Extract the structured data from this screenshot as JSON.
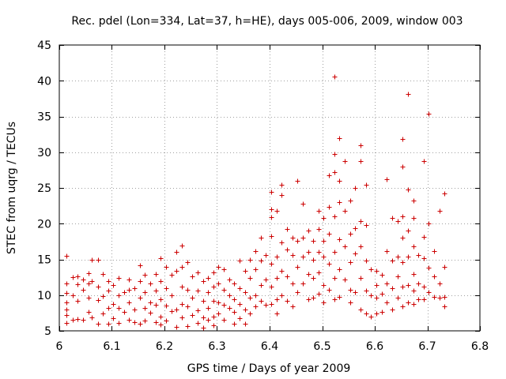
{
  "chart_data": {
    "type": "scatter",
    "title": "Rec. pdel (Lon=334, Lat=37, h=HE), days 005-006, 2009, window 003",
    "xlabel": "GPS time / Days of year 2009",
    "ylabel": "STEC from uqrg / TECUs",
    "xlim": [
      6,
      6.8
    ],
    "ylim": [
      5,
      45
    ],
    "xticks": [
      6,
      6.1,
      6.2,
      6.3,
      6.4,
      6.5,
      6.6,
      6.7,
      6.8
    ],
    "xtick_labels": [
      "6",
      "6.1",
      "6.2",
      "6.3",
      "6.4",
      "6.5",
      "6.6",
      "6.7",
      "6.8"
    ],
    "yticks": [
      5,
      10,
      15,
      20,
      25,
      30,
      35,
      40,
      45
    ],
    "ytick_labels": [
      "5",
      "10",
      "15",
      "20",
      "25",
      "30",
      "35",
      "40",
      "45"
    ],
    "grid": true,
    "marker": "+",
    "marker_color": "#cc0000",
    "series": [
      {
        "name": "STEC",
        "points": [
          [
            6.013,
            15.5
          ],
          [
            6.013,
            11.6
          ],
          [
            6.013,
            10.3
          ],
          [
            6.013,
            9.0
          ],
          [
            6.013,
            8.0
          ],
          [
            6.013,
            7.2
          ],
          [
            6.013,
            6.1
          ],
          [
            6.025,
            12.5
          ],
          [
            6.025,
            10.0
          ],
          [
            6.025,
            6.6
          ],
          [
            6.035,
            12.6
          ],
          [
            6.035,
            11.5
          ],
          [
            6.035,
            9.2
          ],
          [
            6.035,
            6.7
          ],
          [
            6.045,
            12.2
          ],
          [
            6.045,
            10.8
          ],
          [
            6.045,
            6.6
          ],
          [
            6.055,
            13.1
          ],
          [
            6.055,
            11.6
          ],
          [
            6.055,
            9.6
          ],
          [
            6.055,
            7.6
          ],
          [
            6.062,
            15.0
          ],
          [
            6.062,
            12.0
          ],
          [
            6.062,
            6.9
          ],
          [
            6.073,
            15.0
          ],
          [
            6.073,
            11.2
          ],
          [
            6.073,
            9.3
          ],
          [
            6.073,
            6.0
          ],
          [
            6.083,
            13.0
          ],
          [
            6.083,
            9.9
          ],
          [
            6.083,
            7.4
          ],
          [
            6.093,
            12.0
          ],
          [
            6.093,
            10.6
          ],
          [
            6.093,
            8.2
          ],
          [
            6.093,
            6.0
          ],
          [
            6.103,
            11.4
          ],
          [
            6.103,
            8.8
          ],
          [
            6.103,
            6.8
          ],
          [
            6.113,
            12.4
          ],
          [
            6.113,
            10.0
          ],
          [
            6.113,
            8.2
          ],
          [
            6.113,
            6.1
          ],
          [
            6.123,
            10.4
          ],
          [
            6.123,
            7.7
          ],
          [
            6.133,
            12.2
          ],
          [
            6.133,
            10.8
          ],
          [
            6.133,
            9.0
          ],
          [
            6.133,
            6.5
          ],
          [
            6.143,
            11.0
          ],
          [
            6.143,
            8.0
          ],
          [
            6.143,
            6.2
          ],
          [
            6.153,
            14.2
          ],
          [
            6.153,
            12.0
          ],
          [
            6.153,
            9.6
          ],
          [
            6.153,
            6.0
          ],
          [
            6.163,
            12.8
          ],
          [
            6.163,
            10.4
          ],
          [
            6.163,
            8.2
          ],
          [
            6.163,
            6.4
          ],
          [
            6.173,
            11.6
          ],
          [
            6.173,
            9.0
          ],
          [
            6.173,
            7.5
          ],
          [
            6.183,
            13.0
          ],
          [
            6.183,
            10.6
          ],
          [
            6.183,
            8.6
          ],
          [
            6.183,
            6.2
          ],
          [
            6.193,
            15.2
          ],
          [
            6.193,
            12.0
          ],
          [
            6.193,
            9.4
          ],
          [
            6.193,
            7.0
          ],
          [
            6.193,
            5.9
          ],
          [
            6.203,
            14.0
          ],
          [
            6.203,
            11.0
          ],
          [
            6.203,
            8.5
          ],
          [
            6.203,
            6.4
          ],
          [
            6.213,
            12.8
          ],
          [
            6.213,
            10.0
          ],
          [
            6.213,
            7.8
          ],
          [
            6.223,
            16.0
          ],
          [
            6.223,
            13.4
          ],
          [
            6.223,
            8.0
          ],
          [
            6.223,
            5.6
          ],
          [
            6.233,
            16.9
          ],
          [
            6.233,
            14.0
          ],
          [
            6.233,
            11.2
          ],
          [
            6.233,
            8.8
          ],
          [
            6.233,
            6.9
          ],
          [
            6.243,
            14.6
          ],
          [
            6.243,
            10.8
          ],
          [
            6.243,
            8.4
          ],
          [
            6.243,
            5.7
          ],
          [
            6.253,
            12.6
          ],
          [
            6.253,
            9.6
          ],
          [
            6.253,
            7.2
          ],
          [
            6.263,
            13.2
          ],
          [
            6.263,
            10.6
          ],
          [
            6.263,
            7.9
          ],
          [
            6.263,
            6.1
          ],
          [
            6.273,
            12.0
          ],
          [
            6.273,
            9.2
          ],
          [
            6.273,
            6.9
          ],
          [
            6.273,
            5.4
          ],
          [
            6.283,
            12.4
          ],
          [
            6.283,
            10.4
          ],
          [
            6.283,
            8.2
          ],
          [
            6.283,
            6.6
          ],
          [
            6.293,
            13.2
          ],
          [
            6.293,
            11.2
          ],
          [
            6.293,
            9.2
          ],
          [
            6.293,
            7.0
          ],
          [
            6.293,
            5.8
          ],
          [
            6.303,
            14.0
          ],
          [
            6.303,
            11.6
          ],
          [
            6.303,
            9.0
          ],
          [
            6.303,
            7.4
          ],
          [
            6.313,
            13.6
          ],
          [
            6.313,
            10.8
          ],
          [
            6.313,
            8.6
          ],
          [
            6.313,
            6.6
          ],
          [
            6.323,
            12.2
          ],
          [
            6.323,
            10.0
          ],
          [
            6.323,
            8.2
          ],
          [
            6.333,
            11.6
          ],
          [
            6.333,
            9.4
          ],
          [
            6.333,
            7.6
          ],
          [
            6.333,
            6.0
          ],
          [
            6.343,
            14.8
          ],
          [
            6.343,
            11.0
          ],
          [
            6.343,
            8.8
          ],
          [
            6.343,
            6.8
          ],
          [
            6.353,
            13.4
          ],
          [
            6.353,
            10.4
          ],
          [
            6.353,
            8.0
          ],
          [
            6.353,
            6.0
          ],
          [
            6.363,
            15.0
          ],
          [
            6.363,
            12.4
          ],
          [
            6.363,
            9.6
          ],
          [
            6.363,
            7.4
          ],
          [
            6.373,
            16.2
          ],
          [
            6.373,
            13.6
          ],
          [
            6.373,
            10.0
          ],
          [
            6.373,
            8.4
          ],
          [
            6.383,
            18.0
          ],
          [
            6.383,
            14.8
          ],
          [
            6.383,
            11.4
          ],
          [
            6.383,
            9.2
          ],
          [
            6.393,
            15.6
          ],
          [
            6.393,
            12.2
          ],
          [
            6.393,
            8.6
          ],
          [
            6.403,
            24.5
          ],
          [
            6.403,
            22.0
          ],
          [
            6.403,
            20.9
          ],
          [
            6.403,
            18.3
          ],
          [
            6.403,
            14.4
          ],
          [
            6.403,
            11.2
          ],
          [
            6.403,
            8.8
          ],
          [
            6.413,
            21.8
          ],
          [
            6.413,
            15.4
          ],
          [
            6.413,
            12.4
          ],
          [
            6.413,
            9.4
          ],
          [
            6.413,
            7.4
          ],
          [
            6.423,
            25.4
          ],
          [
            6.423,
            24.0
          ],
          [
            6.423,
            17.4
          ],
          [
            6.423,
            13.4
          ],
          [
            6.423,
            10.0
          ],
          [
            6.433,
            19.2
          ],
          [
            6.433,
            16.4
          ],
          [
            6.433,
            12.6
          ],
          [
            6.433,
            9.2
          ],
          [
            6.443,
            18.0
          ],
          [
            6.443,
            15.6
          ],
          [
            6.443,
            11.6
          ],
          [
            6.443,
            8.4
          ],
          [
            6.453,
            26.0
          ],
          [
            6.453,
            17.6
          ],
          [
            6.453,
            14.0
          ],
          [
            6.453,
            10.4
          ],
          [
            6.463,
            22.8
          ],
          [
            6.463,
            18.0
          ],
          [
            6.463,
            15.4
          ],
          [
            6.463,
            11.6
          ],
          [
            6.473,
            19.0
          ],
          [
            6.473,
            16.0
          ],
          [
            6.473,
            13.0
          ],
          [
            6.473,
            9.4
          ],
          [
            6.483,
            17.6
          ],
          [
            6.483,
            15.0
          ],
          [
            6.483,
            12.4
          ],
          [
            6.483,
            9.6
          ],
          [
            6.493,
            21.8
          ],
          [
            6.493,
            19.2
          ],
          [
            6.493,
            16.0
          ],
          [
            6.493,
            13.2
          ],
          [
            6.493,
            10.2
          ],
          [
            6.503,
            20.8
          ],
          [
            6.503,
            17.6
          ],
          [
            6.503,
            15.4
          ],
          [
            6.503,
            11.4
          ],
          [
            6.503,
            9.0
          ],
          [
            6.513,
            26.8
          ],
          [
            6.513,
            22.4
          ],
          [
            6.513,
            18.6
          ],
          [
            6.513,
            14.4
          ],
          [
            6.513,
            10.8
          ],
          [
            6.523,
            40.6
          ],
          [
            6.523,
            29.8
          ],
          [
            6.523,
            27.2
          ],
          [
            6.523,
            21.0
          ],
          [
            6.523,
            16.0
          ],
          [
            6.523,
            12.4
          ],
          [
            6.523,
            9.4
          ],
          [
            6.533,
            32.0
          ],
          [
            6.533,
            26.0
          ],
          [
            6.533,
            23.0
          ],
          [
            6.533,
            17.8
          ],
          [
            6.533,
            13.6
          ],
          [
            6.533,
            9.8
          ],
          [
            6.543,
            28.8
          ],
          [
            6.543,
            21.8
          ],
          [
            6.543,
            16.8
          ],
          [
            6.543,
            12.2
          ],
          [
            6.553,
            23.2
          ],
          [
            6.553,
            18.6
          ],
          [
            6.553,
            14.6
          ],
          [
            6.553,
            10.8
          ],
          [
            6.553,
            9.0
          ],
          [
            6.563,
            25.0
          ],
          [
            6.563,
            19.4
          ],
          [
            6.563,
            15.8
          ],
          [
            6.563,
            10.4
          ],
          [
            6.573,
            31.0
          ],
          [
            6.573,
            28.8
          ],
          [
            6.573,
            20.4
          ],
          [
            6.573,
            16.8
          ],
          [
            6.573,
            12.4
          ],
          [
            6.573,
            8.0
          ],
          [
            6.583,
            25.4
          ],
          [
            6.583,
            19.8
          ],
          [
            6.583,
            14.8
          ],
          [
            6.583,
            10.6
          ],
          [
            6.583,
            7.4
          ],
          [
            6.593,
            13.6
          ],
          [
            6.593,
            10.0
          ],
          [
            6.593,
            7.0
          ],
          [
            6.603,
            13.4
          ],
          [
            6.603,
            11.4
          ],
          [
            6.603,
            9.6
          ],
          [
            6.603,
            7.4
          ],
          [
            6.613,
            12.8
          ],
          [
            6.613,
            10.2
          ],
          [
            6.613,
            7.6
          ],
          [
            6.623,
            26.2
          ],
          [
            6.623,
            16.2
          ],
          [
            6.623,
            11.6
          ],
          [
            6.623,
            9.0
          ],
          [
            6.633,
            20.8
          ],
          [
            6.633,
            14.8
          ],
          [
            6.633,
            11.0
          ],
          [
            6.633,
            8.0
          ],
          [
            6.643,
            20.4
          ],
          [
            6.643,
            15.4
          ],
          [
            6.643,
            12.6
          ],
          [
            6.643,
            9.6
          ],
          [
            6.653,
            31.8
          ],
          [
            6.653,
            28.0
          ],
          [
            6.653,
            21.0
          ],
          [
            6.653,
            18.0
          ],
          [
            6.653,
            14.6
          ],
          [
            6.653,
            11.2
          ],
          [
            6.653,
            8.4
          ],
          [
            6.663,
            38.2
          ],
          [
            6.663,
            24.8
          ],
          [
            6.663,
            19.0
          ],
          [
            6.663,
            15.4
          ],
          [
            6.663,
            11.4
          ],
          [
            6.663,
            9.0
          ],
          [
            6.673,
            23.2
          ],
          [
            6.673,
            20.8
          ],
          [
            6.673,
            16.8
          ],
          [
            6.673,
            13.0
          ],
          [
            6.673,
            10.6
          ],
          [
            6.673,
            8.8
          ],
          [
            6.683,
            15.6
          ],
          [
            6.683,
            11.6
          ],
          [
            6.683,
            9.4
          ],
          [
            6.693,
            28.8
          ],
          [
            6.693,
            18.2
          ],
          [
            6.693,
            15.2
          ],
          [
            6.693,
            11.2
          ],
          [
            6.693,
            9.4
          ],
          [
            6.703,
            35.4
          ],
          [
            6.703,
            20.0
          ],
          [
            6.703,
            13.8
          ],
          [
            6.703,
            10.4
          ],
          [
            6.713,
            16.2
          ],
          [
            6.713,
            12.6
          ],
          [
            6.713,
            9.8
          ],
          [
            6.723,
            21.8
          ],
          [
            6.723,
            11.6
          ],
          [
            6.723,
            9.6
          ],
          [
            6.733,
            24.2
          ],
          [
            6.733,
            14.0
          ],
          [
            6.733,
            9.8
          ],
          [
            6.733,
            8.4
          ]
        ]
      }
    ]
  }
}
